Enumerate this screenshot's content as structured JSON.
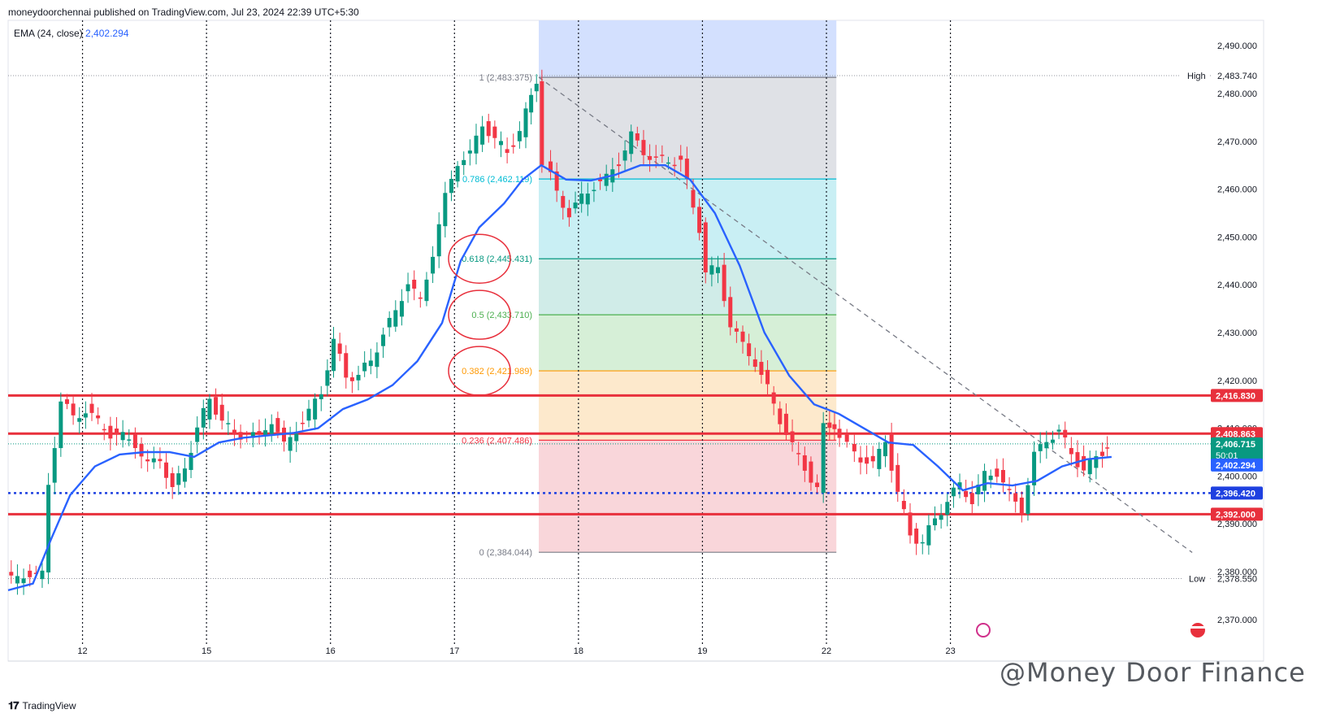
{
  "header": {
    "title": "moneydoorchennai published on TradingView.com, Jul 23, 2024 22:39 UTC+5:30"
  },
  "legend": {
    "label": "EMA (24, close)",
    "value": "2,402.294"
  },
  "footer": {
    "brand": "TradingView"
  },
  "watermark": {
    "text": "@Money Door Finance"
  },
  "colors": {
    "up": "#089981",
    "down": "#f23645",
    "ema": "#2962ff",
    "level": "#e8303c"
  },
  "chart_data": {
    "type": "candlestick",
    "ylim": [
      2365.2,
      2495.3
    ],
    "yticks": [
      2370,
      2380,
      2390,
      2400,
      2410,
      2420,
      2430,
      2440,
      2450,
      2460,
      2470,
      2480,
      2490
    ],
    "ytick_labels": [
      "2,370.000",
      "2,380.000",
      "2,390.000",
      "2,400.000",
      "2,410.000",
      "2,420.000",
      "2,430.000",
      "2,440.000",
      "2,450.000",
      "2,460.000",
      "2,470.000",
      "2,480.000",
      "2,490.000"
    ],
    "x_ticks": [
      {
        "label": "12",
        "x": 1
      },
      {
        "label": "15",
        "x": 2
      },
      {
        "label": "16",
        "x": 3
      },
      {
        "label": "17",
        "x": 4
      },
      {
        "label": "18",
        "x": 5
      },
      {
        "label": "19",
        "x": 6
      },
      {
        "label": "22",
        "x": 7
      },
      {
        "label": "23",
        "x": 8
      }
    ],
    "x_range": [
      0.4,
      10.1
    ],
    "fibonacci": {
      "x_start": 4.68,
      "x_end": 7.08,
      "levels": [
        {
          "ratio": 1,
          "label": "1 (2,483.375)",
          "price": 2483.375,
          "color": "#787b86",
          "fill": "#dfe1e6"
        },
        {
          "ratio": 0.786,
          "label": "0.786 (2,462.119)",
          "price": 2462.119,
          "color": "#00bcd4",
          "fill": "#c9eff4"
        },
        {
          "ratio": 0.618,
          "label": "0.618 (2,445.431)",
          "price": 2445.431,
          "color": "#089981",
          "fill": "#d0ece8"
        },
        {
          "ratio": 0.5,
          "label": "0.5 (2,433.710)",
          "price": 2433.71,
          "color": "#4caf50",
          "fill": "#d6efd7"
        },
        {
          "ratio": 0.382,
          "label": "0.382 (2,421.989)",
          "price": 2421.989,
          "color": "#ff9800",
          "fill": "#fde9cc"
        },
        {
          "ratio": 0.236,
          "label": "0.236 (2,407.486)",
          "price": 2407.486,
          "color": "#f23645",
          "fill": "#f9d6da"
        },
        {
          "ratio": 0,
          "label": "0 (2,384.044)",
          "price": 2384.044,
          "color": "#787b86",
          "fill": null
        }
      ],
      "top_fill": "#d3e0fe"
    },
    "horizontal_lines": [
      {
        "price": 2416.83,
        "label": "2,416.830",
        "color": "#e8303c",
        "style": "solid"
      },
      {
        "price": 2408.863,
        "label": "2,408.863",
        "color": "#e8303c",
        "style": "solid"
      },
      {
        "price": 2396.42,
        "label": "2,396.420",
        "color": "#1e40e0",
        "style": "dotted"
      },
      {
        "price": 2392.0,
        "label": "2,392.000",
        "color": "#e8303c",
        "style": "solid"
      }
    ],
    "high": {
      "label": "High",
      "price": 2483.74,
      "value": "2,483.740"
    },
    "low": {
      "label": "Low",
      "price": 2378.55,
      "value": "2,378.550"
    },
    "last_price": {
      "price": 2406.715,
      "value": "2,406.715",
      "countdown": "50:01"
    },
    "ema_label": {
      "price": 2402.294,
      "value": "2,402.294"
    },
    "trendline": {
      "from": [
        4.68,
        2483.4
      ],
      "to": [
        9.95,
        2384.0
      ]
    },
    "ema_series": [
      [
        0.4,
        2376.1
      ],
      [
        0.6,
        2377.5
      ],
      [
        0.75,
        2387
      ],
      [
        0.9,
        2396
      ],
      [
        1.1,
        2402
      ],
      [
        1.3,
        2404.5
      ],
      [
        1.5,
        2405
      ],
      [
        1.7,
        2405
      ],
      [
        1.9,
        2404
      ],
      [
        2.1,
        2407
      ],
      [
        2.3,
        2408
      ],
      [
        2.5,
        2408.5
      ],
      [
        2.7,
        2409
      ],
      [
        2.9,
        2410
      ],
      [
        3.1,
        2414
      ],
      [
        3.3,
        2416
      ],
      [
        3.5,
        2419
      ],
      [
        3.7,
        2424
      ],
      [
        3.9,
        2432
      ],
      [
        4.05,
        2445
      ],
      [
        4.2,
        2452
      ],
      [
        4.4,
        2457
      ],
      [
        4.55,
        2462
      ],
      [
        4.7,
        2465
      ],
      [
        4.9,
        2462
      ],
      [
        5.1,
        2461.8
      ],
      [
        5.3,
        2463
      ],
      [
        5.5,
        2465
      ],
      [
        5.7,
        2465
      ],
      [
        5.9,
        2462
      ],
      [
        6.1,
        2455
      ],
      [
        6.3,
        2444
      ],
      [
        6.5,
        2430
      ],
      [
        6.7,
        2421
      ],
      [
        6.9,
        2415
      ],
      [
        7.1,
        2413
      ],
      [
        7.3,
        2410
      ],
      [
        7.5,
        2407
      ],
      [
        7.7,
        2406.5
      ],
      [
        7.9,
        2402
      ],
      [
        8.1,
        2397
      ],
      [
        8.3,
        2398.5
      ],
      [
        8.5,
        2398
      ],
      [
        8.7,
        2399
      ],
      [
        8.9,
        2402
      ],
      [
        9.1,
        2403.5
      ],
      [
        9.3,
        2404
      ]
    ],
    "candles_hint": "approximate OHLC bars reconstructed from the chart"
  }
}
